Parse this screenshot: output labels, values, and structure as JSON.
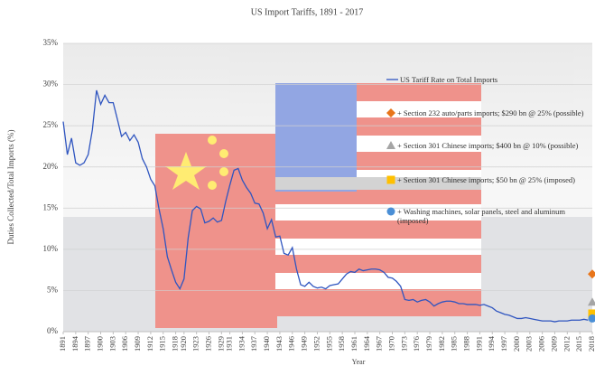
{
  "chart_data": {
    "type": "line",
    "title": "US Import Tariffs, 1891 - 2017",
    "x_label": "Year",
    "y_label": "Duties Collected/Total Imports (%)",
    "xlim": [
      1891,
      2018
    ],
    "xticks": [
      1891,
      1894,
      1897,
      1900,
      1903,
      1906,
      1909,
      1912,
      1915,
      1918,
      1920,
      1923,
      1926,
      1929,
      1931,
      1934,
      1937,
      1940,
      1943,
      1946,
      1949,
      1952,
      1955,
      1958,
      1961,
      1964,
      1967,
      1970,
      1973,
      1976,
      1979,
      1982,
      1985,
      1988,
      1991,
      1994,
      1997,
      2000,
      2003,
      2006,
      2009,
      2012,
      2015,
      2018
    ],
    "ylim": [
      0,
      35
    ],
    "yticks": [
      {
        "value": 0,
        "label": "0%"
      },
      {
        "value": 5,
        "label": "5%"
      },
      {
        "value": 10,
        "label": "10%"
      },
      {
        "value": 15,
        "label": "15%"
      },
      {
        "value": 20,
        "label": "20%"
      },
      {
        "value": 25,
        "label": "25%"
      },
      {
        "value": 30,
        "label": "30%"
      },
      {
        "value": 35,
        "label": "35%"
      }
    ],
    "legend": "right",
    "series": [
      {
        "name": "US Tariff Rate on Total Imports",
        "color": "#2f55c0",
        "marker": "line",
        "x": [
          1891,
          1892,
          1893,
          1894,
          1895,
          1896,
          1897,
          1898,
          1899,
          1900,
          1901,
          1902,
          1903,
          1904,
          1905,
          1906,
          1907,
          1908,
          1909,
          1910,
          1911,
          1912,
          1913,
          1914,
          1915,
          1916,
          1917,
          1918,
          1919,
          1920,
          1921,
          1922,
          1923,
          1924,
          1925,
          1926,
          1927,
          1928,
          1929,
          1930,
          1931,
          1932,
          1933,
          1934,
          1935,
          1936,
          1937,
          1938,
          1939,
          1940,
          1941,
          1942,
          1943,
          1944,
          1945,
          1946,
          1947,
          1948,
          1949,
          1950,
          1951,
          1952,
          1953,
          1954,
          1955,
          1956,
          1957,
          1958,
          1959,
          1960,
          1961,
          1962,
          1963,
          1964,
          1965,
          1966,
          1967,
          1968,
          1969,
          1970,
          1971,
          1972,
          1973,
          1974,
          1975,
          1976,
          1977,
          1978,
          1979,
          1980,
          1981,
          1982,
          1983,
          1984,
          1985,
          1986,
          1987,
          1988,
          1989,
          1990,
          1991,
          1992,
          1993,
          1994,
          1995,
          1996,
          1997,
          1998,
          1999,
          2000,
          2001,
          2002,
          2003,
          2004,
          2005,
          2006,
          2007,
          2008,
          2009,
          2010,
          2011,
          2012,
          2013,
          2014,
          2015,
          2016,
          2017
        ],
        "values": [
          25.5,
          21.5,
          23.5,
          20.5,
          20.2,
          20.5,
          21.5,
          24.5,
          29.3,
          27.6,
          28.7,
          27.8,
          27.8,
          25.8,
          23.7,
          24.2,
          23.2,
          23.9,
          23.0,
          21.0,
          20.0,
          18.5,
          17.7,
          14.9,
          12.5,
          9.1,
          7.5,
          6.0,
          5.2,
          6.4,
          11.4,
          14.7,
          15.2,
          14.9,
          13.2,
          13.4,
          13.8,
          13.3,
          13.5,
          15.8,
          17.8,
          19.6,
          19.8,
          18.4,
          17.5,
          16.8,
          15.6,
          15.5,
          14.4,
          12.5,
          13.6,
          11.5,
          11.6,
          9.5,
          9.3,
          10.2,
          7.6,
          5.7,
          5.5,
          6.0,
          5.5,
          5.3,
          5.4,
          5.2,
          5.6,
          5.7,
          5.8,
          6.4,
          7.0,
          7.3,
          7.2,
          7.6,
          7.4,
          7.5,
          7.6,
          7.6,
          7.5,
          7.2,
          6.6,
          6.5,
          6.1,
          5.5,
          3.9,
          3.8,
          3.9,
          3.6,
          3.8,
          3.9,
          3.6,
          3.1,
          3.4,
          3.6,
          3.7,
          3.7,
          3.6,
          3.4,
          3.4,
          3.3,
          3.3,
          3.3,
          3.2,
          3.3,
          3.1,
          2.9,
          2.5,
          2.3,
          2.1,
          2.0,
          1.8,
          1.6,
          1.6,
          1.7,
          1.6,
          1.5,
          1.4,
          1.3,
          1.3,
          1.3,
          1.2,
          1.3,
          1.3,
          1.3,
          1.4,
          1.4,
          1.4,
          1.5,
          1.4
        ]
      },
      {
        "name": "+ Section 232 auto/parts imports; $290 bn @ 25% (possible)",
        "color": "#e8751a",
        "marker": "diamond",
        "x": [
          2018
        ],
        "values": [
          7.0
        ]
      },
      {
        "name": "+ Section 301 Chinese imports; $400 bn @ 10% (possible)",
        "color": "#a5a5a5",
        "marker": "triangle",
        "x": [
          2018
        ],
        "values": [
          3.6
        ]
      },
      {
        "name": "+ Section 301 Chinese imports; $50 bn @ 25% (imposed)",
        "color": "#ffc000",
        "marker": "square",
        "x": [
          2018
        ],
        "values": [
          2.2
        ]
      },
      {
        "name": "+ Washing machines, solar panels, steel and aluminum (imposed)",
        "color": "#4a8fd6",
        "marker": "circle",
        "x": [
          2018
        ],
        "values": [
          1.6
        ]
      }
    ]
  }
}
